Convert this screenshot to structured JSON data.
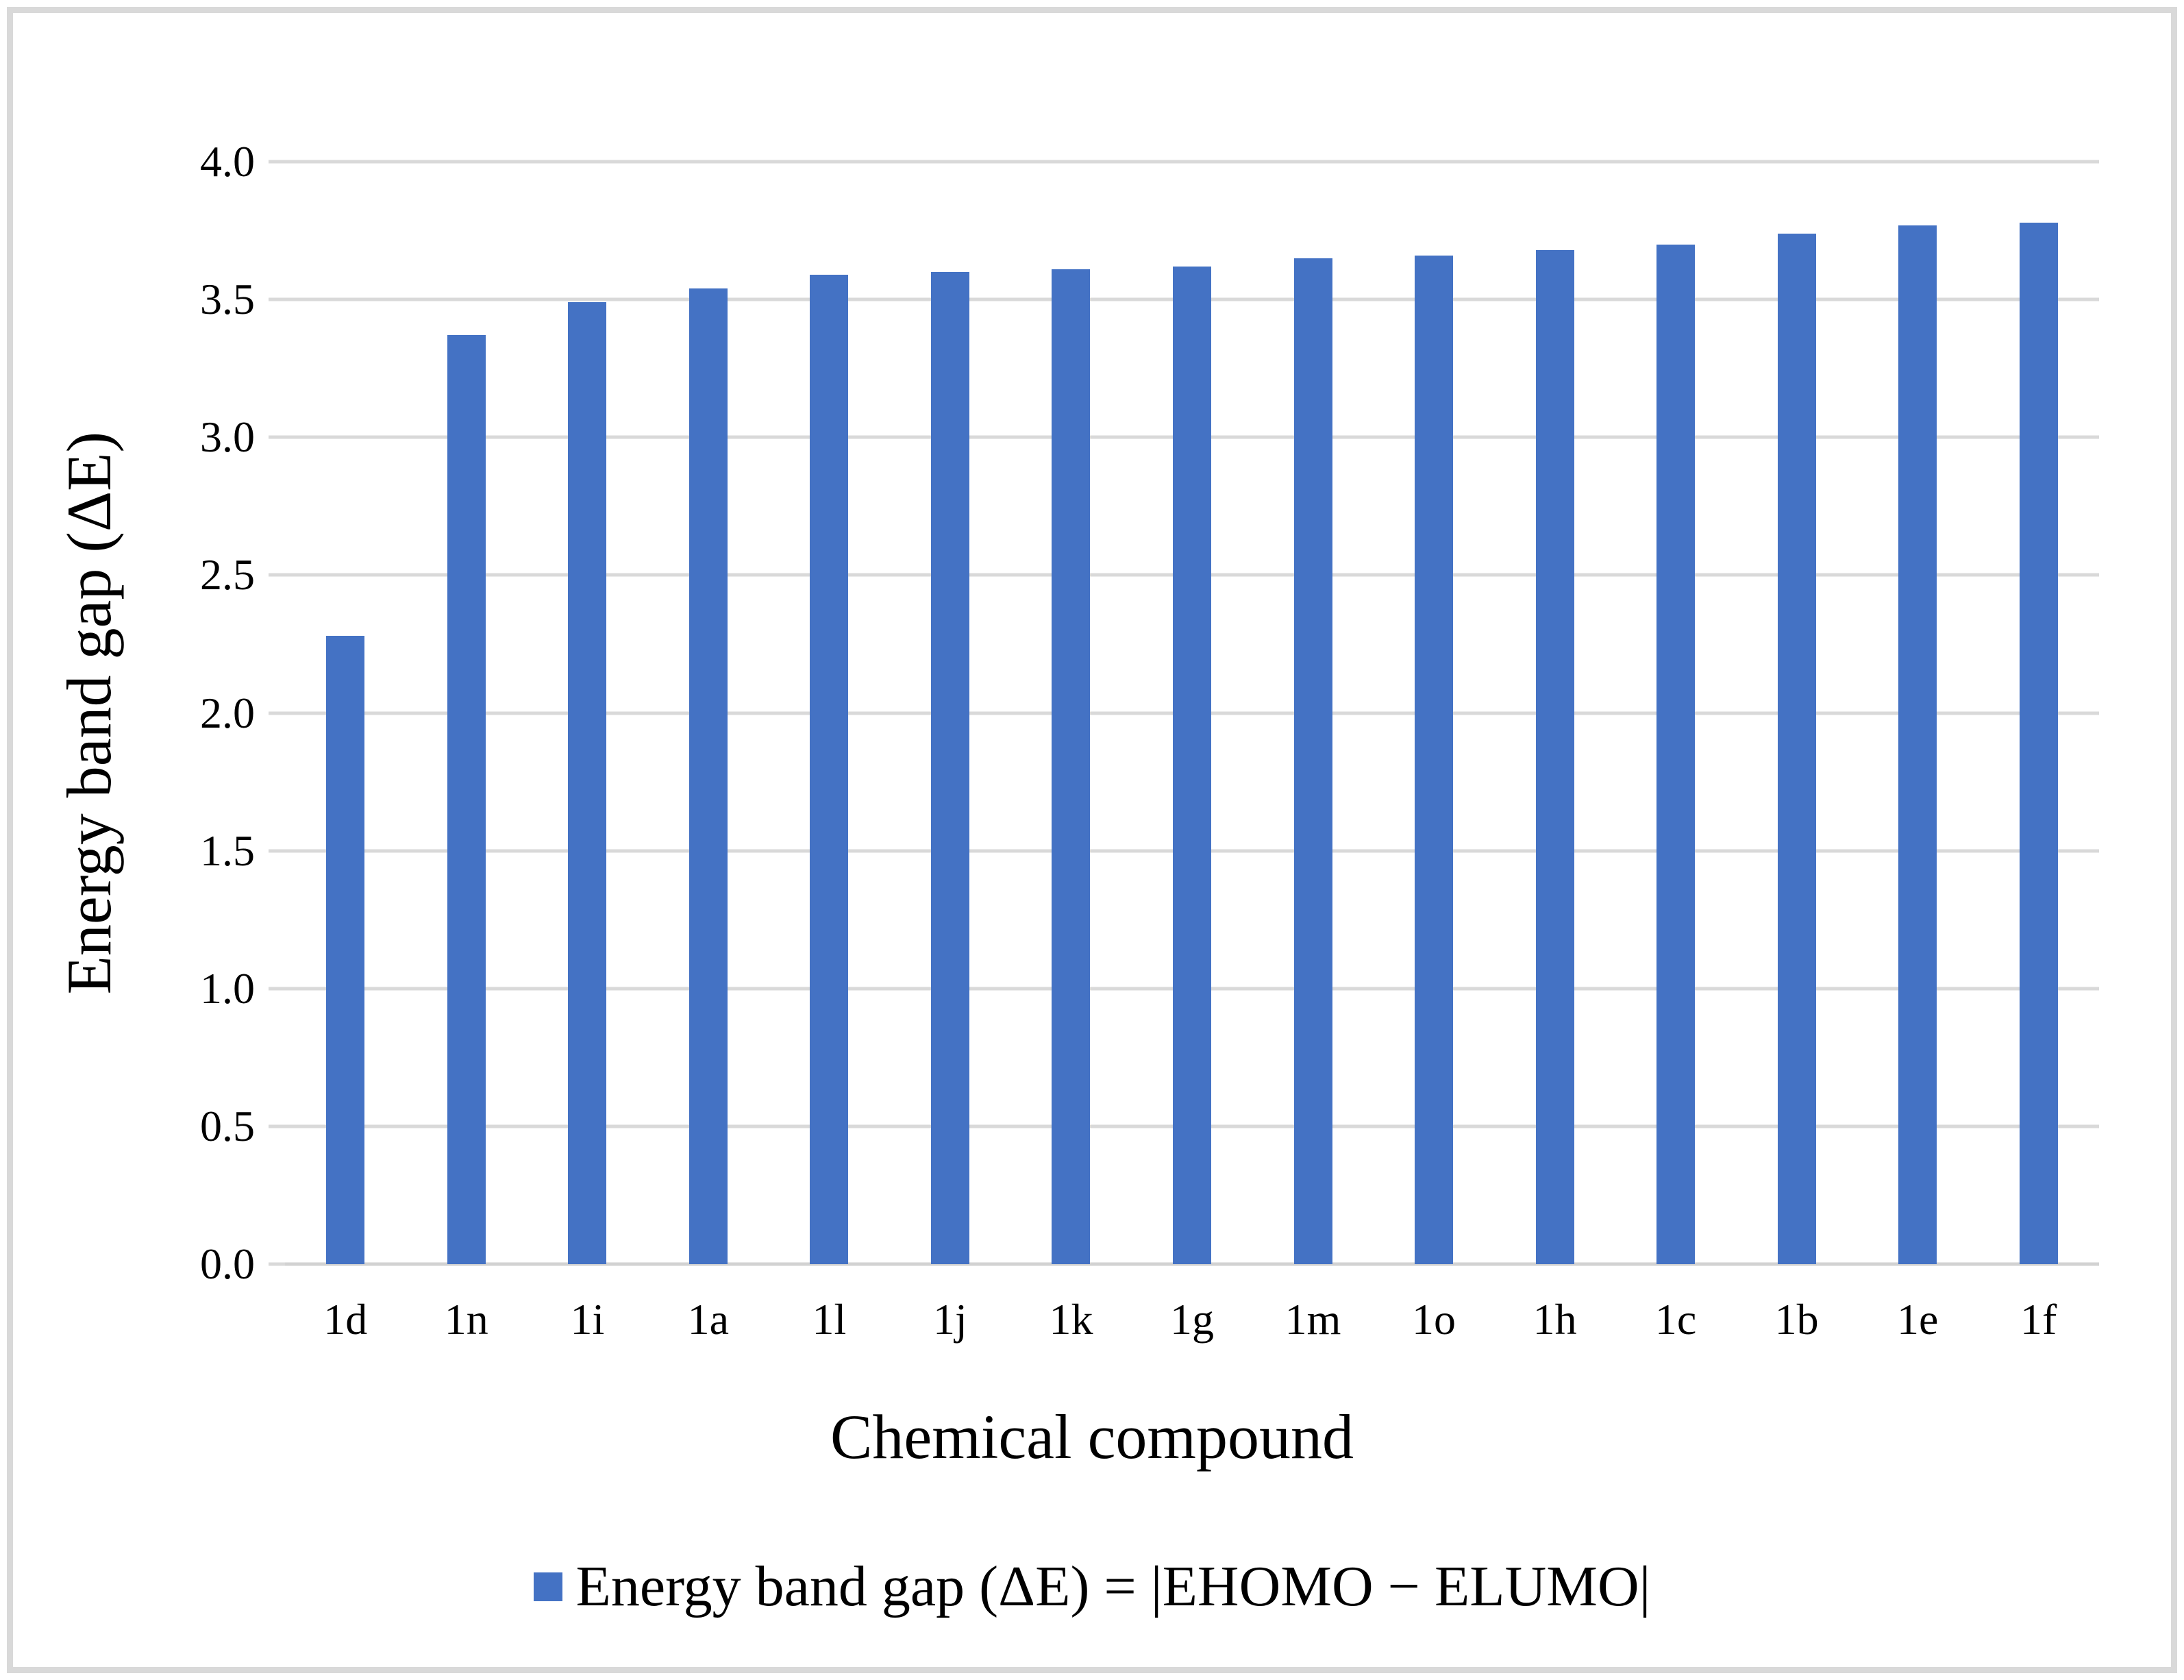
{
  "figure": {
    "background_color": "#ffffff",
    "border_color": "#d9d9d9"
  },
  "axes": {
    "x_title": "Chemical compound",
    "y_title": "Energy band gap (ΔE)"
  },
  "legend": {
    "label": "Energy band gap (ΔE) = |EHOMO − ELUMO|",
    "swatch_color": "#4472C4"
  },
  "chart_data": {
    "type": "bar",
    "title": "",
    "categories": [
      "1d",
      "1n",
      "1i",
      "1a",
      "1l",
      "1j",
      "1k",
      "1g",
      "1m",
      "1o",
      "1h",
      "1c",
      "1b",
      "1e",
      "1f"
    ],
    "values": [
      2.28,
      3.37,
      3.49,
      3.54,
      3.59,
      3.6,
      3.61,
      3.62,
      3.65,
      3.66,
      3.68,
      3.7,
      3.74,
      3.77,
      3.78
    ],
    "series_name": "Energy band gap (ΔE) = |EHOMO − ELUMO|",
    "xlabel": "Chemical compound",
    "ylabel": "Energy band gap (ΔE)",
    "ylim": [
      0.0,
      4.0
    ],
    "y_ticks": [
      "0.0",
      "0.5",
      "1.0",
      "1.5",
      "2.0",
      "2.5",
      "3.0",
      "3.5",
      "4.0"
    ],
    "grid": "horizontal gridlines on",
    "legend_position": "bottom center",
    "bar_color": "#4472C4",
    "gridline_color": "#d9d9d9"
  }
}
